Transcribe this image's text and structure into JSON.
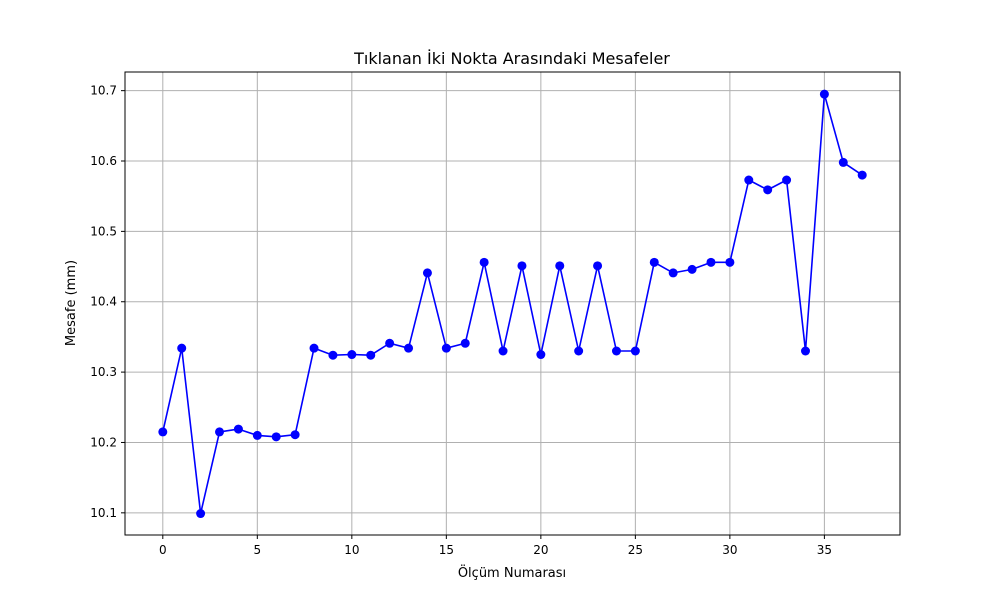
{
  "chart_data": {
    "type": "line",
    "title": "Tıklanan İki Nokta Arasındaki Mesafeler",
    "xlabel": "Ölçüm Numarası",
    "ylabel": "Mesafe (mm)",
    "xlim": [
      -2,
      39
    ],
    "ylim": [
      10.0685,
      10.7265
    ],
    "x_ticks": [
      0,
      5,
      10,
      15,
      20,
      25,
      30,
      35
    ],
    "y_ticks": [
      10.1,
      10.2,
      10.3,
      10.4,
      10.5,
      10.6,
      10.7
    ],
    "x_tick_labels": [
      "0",
      "5",
      "10",
      "15",
      "20",
      "25",
      "30",
      "35"
    ],
    "y_tick_labels": [
      "10.1",
      "10.2",
      "10.3",
      "10.4",
      "10.5",
      "10.6",
      "10.7"
    ],
    "grid": true,
    "legend": "none",
    "series": [
      {
        "color": "#0000ff",
        "marker": "circle",
        "x": [
          0,
          1,
          2,
          3,
          4,
          5,
          6,
          7,
          8,
          9,
          10,
          11,
          12,
          13,
          14,
          15,
          16,
          17,
          18,
          19,
          20,
          21,
          22,
          23,
          24,
          25,
          26,
          27,
          28,
          29,
          30,
          31,
          32,
          33,
          34,
          35,
          36,
          37
        ],
        "values": [
          10.215,
          10.334,
          10.099,
          10.215,
          10.219,
          10.21,
          10.208,
          10.211,
          10.334,
          10.324,
          10.325,
          10.324,
          10.341,
          10.334,
          10.441,
          10.334,
          10.341,
          10.456,
          10.33,
          10.451,
          10.325,
          10.451,
          10.33,
          10.451,
          10.33,
          10.33,
          10.456,
          10.441,
          10.446,
          10.456,
          10.456,
          10.573,
          10.559,
          10.573,
          10.33,
          10.695,
          10.598,
          10.58
        ]
      }
    ]
  }
}
